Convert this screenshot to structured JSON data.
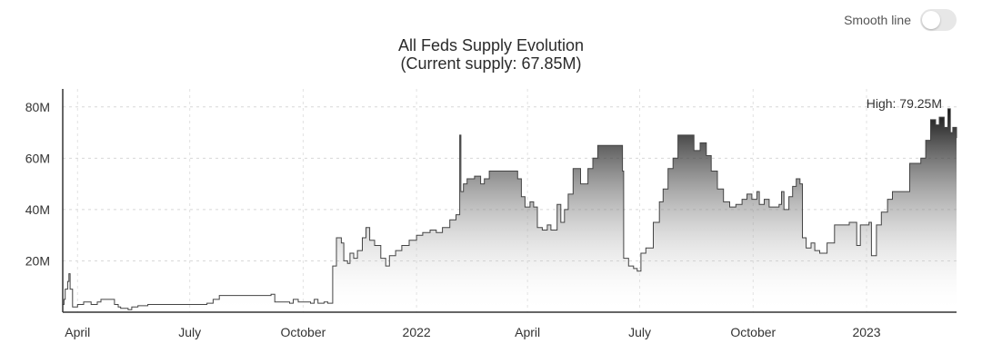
{
  "toggle": {
    "label": "Smooth line",
    "checked": false
  },
  "title_line1": "All Feds Supply Evolution",
  "title_line2": "(Current supply: 67.85M)",
  "chart_data": {
    "type": "area",
    "title": "All Feds Supply Evolution\n(Current supply: 67.85M)",
    "xlabel": "",
    "ylabel": "",
    "ylim": [
      0,
      87
    ],
    "grid": true,
    "y_ticks": [
      {
        "value": 20,
        "label": "20M"
      },
      {
        "value": 40,
        "label": "40M"
      },
      {
        "value": 60,
        "label": "60M"
      },
      {
        "value": 80,
        "label": "80M"
      }
    ],
    "x_ticks": [
      {
        "date": "2021-04-01",
        "label": "April"
      },
      {
        "date": "2021-07-01",
        "label": "July"
      },
      {
        "date": "2021-10-01",
        "label": "October"
      },
      {
        "date": "2022-01-01",
        "label": "2022"
      },
      {
        "date": "2022-04-01",
        "label": "April"
      },
      {
        "date": "2022-07-01",
        "label": "July"
      },
      {
        "date": "2022-10-01",
        "label": "October"
      },
      {
        "date": "2023-01-01",
        "label": "2023"
      }
    ],
    "x_range": [
      "2021-03-20",
      "2023-03-15"
    ],
    "annotation": {
      "text": "High: 79.25M",
      "date": "2023-03-08",
      "value": 79.25
    },
    "series": [
      {
        "values": [
          [
            "2021-03-20",
            3
          ],
          [
            "2021-03-21",
            5
          ],
          [
            "2021-03-22",
            9
          ],
          [
            "2021-03-24",
            12
          ],
          [
            "2021-03-25",
            15
          ],
          [
            "2021-03-26",
            9
          ],
          [
            "2021-03-28",
            2
          ],
          [
            "2021-04-01",
            3
          ],
          [
            "2021-04-06",
            4
          ],
          [
            "2021-04-12",
            3
          ],
          [
            "2021-04-17",
            4
          ],
          [
            "2021-04-20",
            5
          ],
          [
            "2021-05-01",
            3
          ],
          [
            "2021-05-04",
            2
          ],
          [
            "2021-05-06",
            1.5
          ],
          [
            "2021-05-12",
            1
          ],
          [
            "2021-05-15",
            2
          ],
          [
            "2021-05-20",
            2.5
          ],
          [
            "2021-05-28",
            3
          ],
          [
            "2021-06-25",
            3
          ],
          [
            "2021-07-15",
            3.5
          ],
          [
            "2021-07-20",
            5
          ],
          [
            "2021-07-25",
            6.5
          ],
          [
            "2021-09-05",
            7
          ],
          [
            "2021-09-08",
            4
          ],
          [
            "2021-09-20",
            3.5
          ],
          [
            "2021-09-23",
            5
          ],
          [
            "2021-09-27",
            4
          ],
          [
            "2021-10-07",
            3.5
          ],
          [
            "2021-10-10",
            5
          ],
          [
            "2021-10-13",
            3.5
          ],
          [
            "2021-10-18",
            4
          ],
          [
            "2021-10-21",
            3.5
          ],
          [
            "2021-10-25",
            18
          ],
          [
            "2021-10-28",
            29
          ],
          [
            "2021-11-01",
            27
          ],
          [
            "2021-11-03",
            20
          ],
          [
            "2021-11-06",
            19
          ],
          [
            "2021-11-08",
            23
          ],
          [
            "2021-11-11",
            21
          ],
          [
            "2021-11-14",
            24
          ],
          [
            "2021-11-18",
            29
          ],
          [
            "2021-11-21",
            33
          ],
          [
            "2021-11-24",
            28
          ],
          [
            "2021-11-28",
            26
          ],
          [
            "2021-12-03",
            21
          ],
          [
            "2021-12-07",
            18
          ],
          [
            "2021-12-10",
            22
          ],
          [
            "2021-12-15",
            24
          ],
          [
            "2021-12-20",
            26
          ],
          [
            "2021-12-26",
            28
          ],
          [
            "2022-01-01",
            30
          ],
          [
            "2022-01-06",
            31
          ],
          [
            "2022-01-12",
            32
          ],
          [
            "2022-01-17",
            31
          ],
          [
            "2022-01-22",
            33
          ],
          [
            "2022-01-28",
            36
          ],
          [
            "2022-02-02",
            38
          ],
          [
            "2022-02-05",
            69
          ],
          [
            "2022-02-06",
            47
          ],
          [
            "2022-02-08",
            50
          ],
          [
            "2022-02-11",
            52
          ],
          [
            "2022-02-17",
            53
          ],
          [
            "2022-02-22",
            50
          ],
          [
            "2022-02-25",
            52
          ],
          [
            "2022-03-01",
            55
          ],
          [
            "2022-03-24",
            52
          ],
          [
            "2022-03-27",
            45
          ],
          [
            "2022-03-30",
            41
          ],
          [
            "2022-04-03",
            43
          ],
          [
            "2022-04-06",
            41
          ],
          [
            "2022-04-09",
            33
          ],
          [
            "2022-04-13",
            32
          ],
          [
            "2022-04-17",
            34
          ],
          [
            "2022-04-20",
            32
          ],
          [
            "2022-04-25",
            42
          ],
          [
            "2022-04-28",
            35
          ],
          [
            "2022-05-01",
            40
          ],
          [
            "2022-05-04",
            46
          ],
          [
            "2022-05-08",
            56
          ],
          [
            "2022-05-14",
            50
          ],
          [
            "2022-05-20",
            56
          ],
          [
            "2022-05-24",
            60
          ],
          [
            "2022-05-28",
            65
          ],
          [
            "2022-06-15",
            65
          ],
          [
            "2022-06-17",
            55
          ],
          [
            "2022-06-18",
            21
          ],
          [
            "2022-06-22",
            18
          ],
          [
            "2022-06-26",
            17
          ],
          [
            "2022-06-29",
            16
          ],
          [
            "2022-07-02",
            23
          ],
          [
            "2022-07-06",
            25
          ],
          [
            "2022-07-09",
            25
          ],
          [
            "2022-07-12",
            35
          ],
          [
            "2022-07-17",
            43
          ],
          [
            "2022-07-20",
            48
          ],
          [
            "2022-07-24",
            56
          ],
          [
            "2022-07-28",
            60
          ],
          [
            "2022-08-01",
            69
          ],
          [
            "2022-08-12",
            69
          ],
          [
            "2022-08-14",
            63
          ],
          [
            "2022-08-19",
            66
          ],
          [
            "2022-08-24",
            61
          ],
          [
            "2022-08-28",
            55
          ],
          [
            "2022-09-02",
            48
          ],
          [
            "2022-09-07",
            43
          ],
          [
            "2022-09-12",
            41
          ],
          [
            "2022-09-17",
            42
          ],
          [
            "2022-09-22",
            44
          ],
          [
            "2022-09-26",
            46
          ],
          [
            "2022-09-30",
            44
          ],
          [
            "2022-10-04",
            47
          ],
          [
            "2022-10-06",
            42
          ],
          [
            "2022-10-10",
            44
          ],
          [
            "2022-10-14",
            41
          ],
          [
            "2022-10-22",
            42
          ],
          [
            "2022-10-24",
            47
          ],
          [
            "2022-10-26",
            40
          ],
          [
            "2022-10-30",
            45
          ],
          [
            "2022-11-02",
            49
          ],
          [
            "2022-11-05",
            52
          ],
          [
            "2022-11-08",
            50
          ],
          [
            "2022-11-10",
            29
          ],
          [
            "2022-11-13",
            25
          ],
          [
            "2022-11-17",
            27
          ],
          [
            "2022-11-20",
            24
          ],
          [
            "2022-11-24",
            23
          ],
          [
            "2022-11-30",
            27
          ],
          [
            "2022-12-06",
            34
          ],
          [
            "2022-12-18",
            35
          ],
          [
            "2022-12-24",
            26
          ],
          [
            "2022-12-27",
            34
          ],
          [
            "2023-01-03",
            35
          ],
          [
            "2023-01-05",
            22
          ],
          [
            "2023-01-09",
            34
          ],
          [
            "2023-01-13",
            39
          ],
          [
            "2023-01-18",
            44
          ],
          [
            "2023-01-22",
            47
          ],
          [
            "2023-01-28",
            47
          ],
          [
            "2023-02-05",
            58
          ],
          [
            "2023-02-14",
            60
          ],
          [
            "2023-02-18",
            67
          ],
          [
            "2023-02-22",
            75
          ],
          [
            "2023-02-26",
            73
          ],
          [
            "2023-03-01",
            76
          ],
          [
            "2023-03-05",
            72
          ],
          [
            "2023-03-08",
            79.25
          ],
          [
            "2023-03-10",
            70
          ],
          [
            "2023-03-12",
            72
          ],
          [
            "2023-03-15",
            67.85
          ]
        ]
      }
    ]
  }
}
